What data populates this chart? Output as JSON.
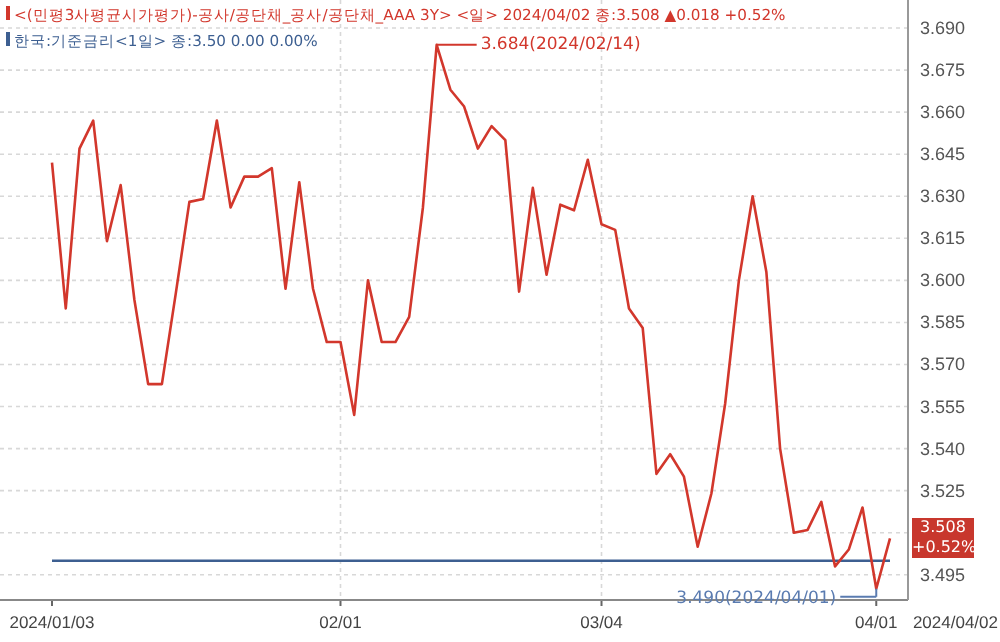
{
  "chart_data": {
    "type": "line",
    "categories": [
      "2024/01/03",
      null,
      null,
      null,
      null,
      null,
      null,
      null,
      null,
      null,
      null,
      null,
      null,
      null,
      null,
      null,
      null,
      null,
      null,
      null,
      null,
      "02/01",
      null,
      null,
      null,
      null,
      null,
      null,
      null,
      null,
      null,
      null,
      null,
      null,
      null,
      null,
      null,
      null,
      null,
      null,
      "03/04",
      null,
      null,
      null,
      null,
      null,
      null,
      null,
      null,
      null,
      null,
      null,
      null,
      null,
      null,
      null,
      null,
      null,
      null,
      null,
      "04/01",
      null
    ],
    "series": [
      {
        "name": "<(민평3사평균시가평가)-공사/공단채_공사/공단채_AAA 3Y> <일> 2024/04/02 종:3.508 ▲0.018 +0.52%",
        "color": "#d2372c",
        "values": [
          3.642,
          3.59,
          3.647,
          3.657,
          3.614,
          3.634,
          3.593,
          3.563,
          3.563,
          3.595,
          3.628,
          3.629,
          3.657,
          3.626,
          3.637,
          3.637,
          3.64,
          3.597,
          3.635,
          3.597,
          3.578,
          3.578,
          3.552,
          3.6,
          3.578,
          3.578,
          3.587,
          3.626,
          3.684,
          3.668,
          3.662,
          3.647,
          3.655,
          3.65,
          3.596,
          3.633,
          3.602,
          3.627,
          3.625,
          3.643,
          3.62,
          3.618,
          3.59,
          3.583,
          3.531,
          3.538,
          3.53,
          3.505,
          3.524,
          3.556,
          3.6,
          3.63,
          3.603,
          3.54,
          3.51,
          3.511,
          3.521,
          3.498,
          3.504,
          3.519,
          3.49,
          3.508
        ]
      },
      {
        "name": "한국:기준금리<1일> 종:3.50 0.00 0.00%",
        "color": "#3d5f91",
        "values": [
          3.5,
          3.5,
          3.5,
          3.5,
          3.5,
          3.5,
          3.5,
          3.5,
          3.5,
          3.5,
          3.5,
          3.5,
          3.5,
          3.5,
          3.5,
          3.5,
          3.5,
          3.5,
          3.5,
          3.5,
          3.5,
          3.5,
          3.5,
          3.5,
          3.5,
          3.5,
          3.5,
          3.5,
          3.5,
          3.5,
          3.5,
          3.5,
          3.5,
          3.5,
          3.5,
          3.5,
          3.5,
          3.5,
          3.5,
          3.5,
          3.5,
          3.5,
          3.5,
          3.5,
          3.5,
          3.5,
          3.5,
          3.5,
          3.5,
          3.5,
          3.5,
          3.5,
          3.5,
          3.5,
          3.5,
          3.5,
          3.5,
          3.5,
          3.5,
          3.5,
          3.5,
          3.5
        ]
      }
    ],
    "ylim": [
      3.486,
      3.7
    ],
    "yticks": [
      {
        "value": 3.495,
        "label": "3.495"
      },
      {
        "value": 3.51,
        "label": null
      },
      {
        "value": 3.525,
        "label": "3.525"
      },
      {
        "value": 3.54,
        "label": "3.540"
      },
      {
        "value": 3.555,
        "label": "3.555"
      },
      {
        "value": 3.57,
        "label": "3.570"
      },
      {
        "value": 3.585,
        "label": "3.585"
      },
      {
        "value": 3.6,
        "label": "3.600"
      },
      {
        "value": 3.615,
        "label": "3.615"
      },
      {
        "value": 3.63,
        "label": "3.630"
      },
      {
        "value": 3.645,
        "label": "3.645"
      },
      {
        "value": 3.66,
        "label": "3.660"
      },
      {
        "value": 3.675,
        "label": "3.675"
      },
      {
        "value": 3.69,
        "label": "3.690"
      }
    ],
    "annotations": [
      "3.684(2024/02/14)",
      "3.490(2024/04/01)",
      "3.508 +0.52%",
      "2024/04/02"
    ],
    "grid": true,
    "legend": "top left",
    "marker": "none",
    "line_style": "solid"
  }
}
